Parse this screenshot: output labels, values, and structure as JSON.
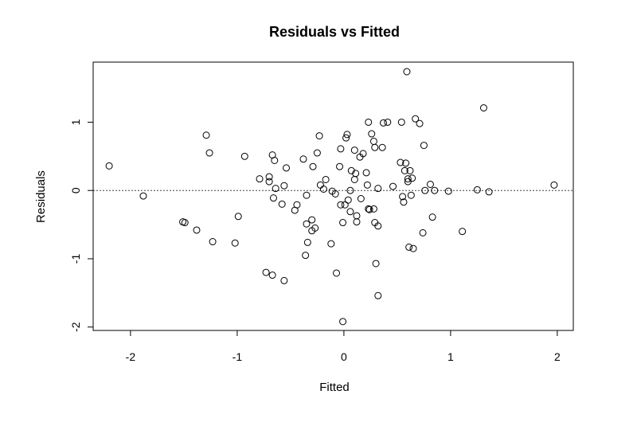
{
  "chart_data": {
    "type": "scatter",
    "title": "Residuals vs Fitted",
    "xlabel": "Fitted",
    "ylabel": "Residuals",
    "xlim": [
      -2.35,
      2.15
    ],
    "ylim": [
      -2.05,
      1.88
    ],
    "xticks": [
      -2,
      -1,
      0,
      1,
      2
    ],
    "yticks": [
      -2,
      -1,
      0,
      1
    ],
    "reference_line": {
      "y": 0,
      "style": "dotted"
    },
    "grid": false,
    "points": [
      [
        -2.2,
        0.36
      ],
      [
        -1.88,
        -0.08
      ],
      [
        -1.51,
        -0.46
      ],
      [
        -1.49,
        -0.47
      ],
      [
        -1.38,
        -0.58
      ],
      [
        -1.29,
        0.81
      ],
      [
        -1.26,
        0.55
      ],
      [
        -1.23,
        -0.75
      ],
      [
        -1.02,
        -0.77
      ],
      [
        -0.99,
        -0.38
      ],
      [
        -0.93,
        0.5
      ],
      [
        -0.79,
        0.17
      ],
      [
        -0.73,
        -1.2
      ],
      [
        -0.7,
        0.2
      ],
      [
        -0.7,
        0.13
      ],
      [
        -0.67,
        0.52
      ],
      [
        -0.67,
        -1.24
      ],
      [
        -0.66,
        -0.11
      ],
      [
        -0.65,
        0.44
      ],
      [
        -0.64,
        0.03
      ],
      [
        -0.58,
        -0.2
      ],
      [
        -0.56,
        0.07
      ],
      [
        -0.56,
        -1.32
      ],
      [
        -0.54,
        0.33
      ],
      [
        -0.46,
        -0.29
      ],
      [
        -0.44,
        -0.21
      ],
      [
        -0.38,
        0.46
      ],
      [
        -0.36,
        -0.95
      ],
      [
        -0.35,
        -0.49
      ],
      [
        -0.35,
        -0.07
      ],
      [
        -0.34,
        -0.76
      ],
      [
        -0.3,
        -0.43
      ],
      [
        -0.3,
        -0.59
      ],
      [
        -0.29,
        0.35
      ],
      [
        -0.27,
        -0.55
      ],
      [
        -0.25,
        0.55
      ],
      [
        -0.23,
        0.8
      ],
      [
        -0.22,
        0.08
      ],
      [
        -0.19,
        0.02
      ],
      [
        -0.17,
        0.16
      ],
      [
        -0.12,
        -0.78
      ],
      [
        -0.11,
        -0.01
      ],
      [
        -0.08,
        -0.05
      ],
      [
        -0.07,
        -1.21
      ],
      [
        -0.04,
        0.35
      ],
      [
        -0.03,
        0.61
      ],
      [
        -0.03,
        -0.21
      ],
      [
        -0.01,
        -0.47
      ],
      [
        -0.01,
        -1.92
      ],
      [
        0.01,
        -0.21
      ],
      [
        0.02,
        0.77
      ],
      [
        0.03,
        0.82
      ],
      [
        0.04,
        -0.14
      ],
      [
        0.06,
        0.0
      ],
      [
        0.06,
        -0.31
      ],
      [
        0.07,
        0.29
      ],
      [
        0.1,
        0.59
      ],
      [
        0.1,
        0.16
      ],
      [
        0.11,
        0.25
      ],
      [
        0.12,
        -0.37
      ],
      [
        0.12,
        -0.46
      ],
      [
        0.15,
        0.49
      ],
      [
        0.16,
        -0.12
      ],
      [
        0.18,
        0.54
      ],
      [
        0.21,
        0.26
      ],
      [
        0.22,
        0.08
      ],
      [
        0.23,
        1.0
      ],
      [
        0.23,
        -0.27
      ],
      [
        0.24,
        -0.28
      ],
      [
        0.26,
        0.83
      ],
      [
        0.28,
        -0.27
      ],
      [
        0.28,
        0.72
      ],
      [
        0.29,
        0.63
      ],
      [
        0.29,
        -0.47
      ],
      [
        0.3,
        -1.07
      ],
      [
        0.32,
        0.03
      ],
      [
        0.32,
        -0.52
      ],
      [
        0.32,
        -1.54
      ],
      [
        0.36,
        0.63
      ],
      [
        0.37,
        0.99
      ],
      [
        0.41,
        1.0
      ],
      [
        0.46,
        0.06
      ],
      [
        0.53,
        0.41
      ],
      [
        0.54,
        1.0
      ],
      [
        0.55,
        -0.09
      ],
      [
        0.56,
        -0.17
      ],
      [
        0.57,
        0.29
      ],
      [
        0.58,
        0.4
      ],
      [
        0.59,
        1.74
      ],
      [
        0.6,
        0.17
      ],
      [
        0.6,
        0.13
      ],
      [
        0.61,
        -0.83
      ],
      [
        0.62,
        0.29
      ],
      [
        0.63,
        -0.07
      ],
      [
        0.64,
        0.18
      ],
      [
        0.65,
        -0.85
      ],
      [
        0.67,
        1.05
      ],
      [
        0.71,
        0.98
      ],
      [
        0.74,
        -0.62
      ],
      [
        0.75,
        0.66
      ],
      [
        0.76,
        0.0
      ],
      [
        0.81,
        0.09
      ],
      [
        0.83,
        -0.39
      ],
      [
        0.85,
        0.0
      ],
      [
        0.98,
        -0.01
      ],
      [
        1.11,
        -0.6
      ],
      [
        1.25,
        0.01
      ],
      [
        1.31,
        1.21
      ],
      [
        1.36,
        -0.02
      ],
      [
        1.97,
        0.08
      ]
    ]
  }
}
